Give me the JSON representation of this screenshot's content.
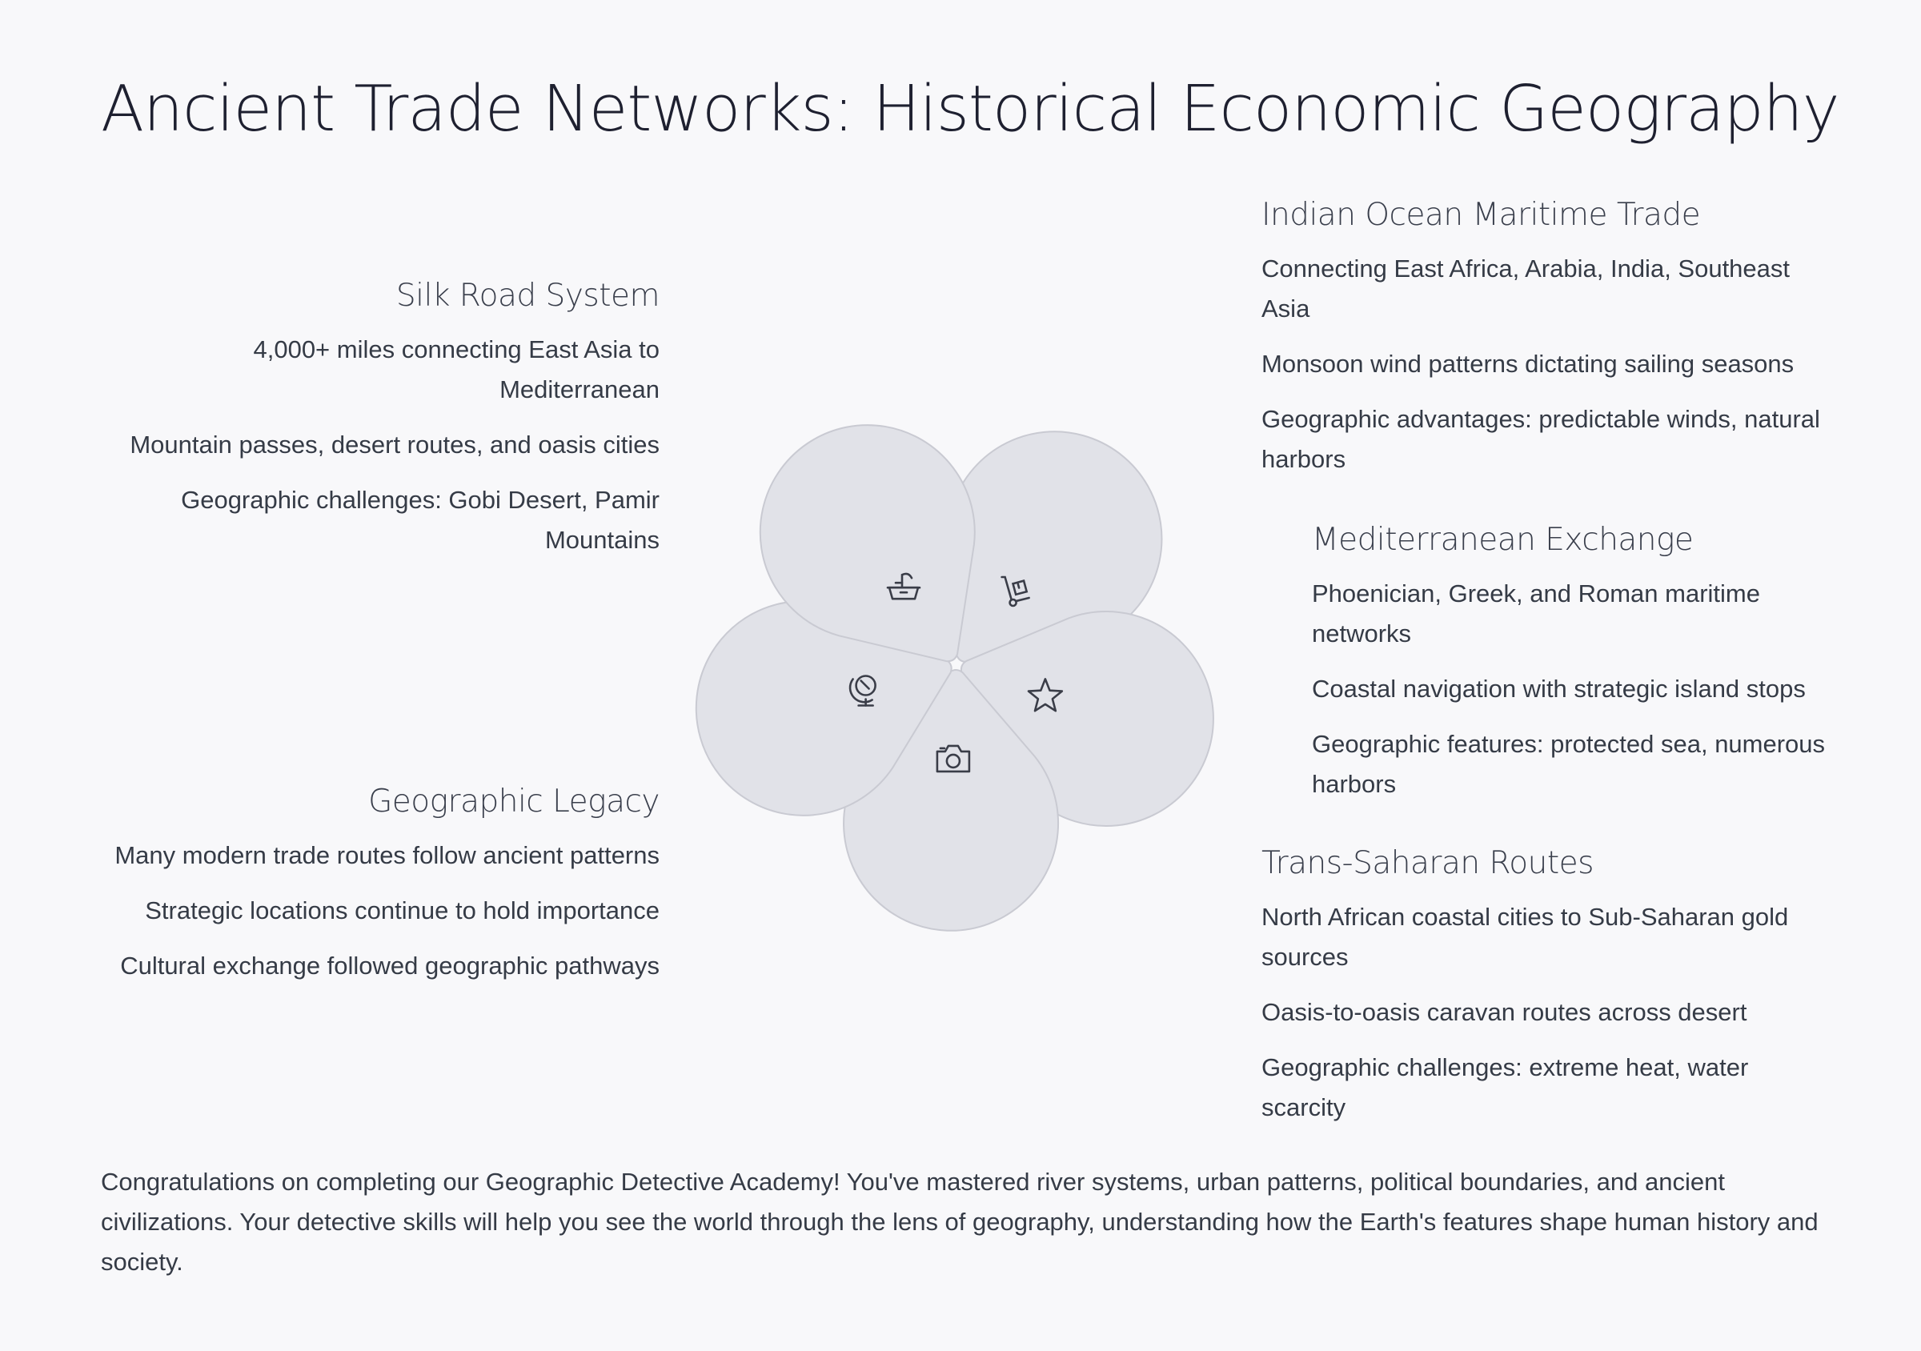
{
  "title": "Ancient Trade Networks: Historical Economic Geography",
  "sections": [
    {
      "id": "silk-road",
      "title": "Silk Road System",
      "items": [
        "4,000+ miles connecting East Asia to Mediterranean",
        "Mountain passes, desert routes, and oasis cities",
        "Geographic challenges: Gobi Desert, Pamir Mountains"
      ]
    },
    {
      "id": "geographic-legacy",
      "title": "Geographic Legacy",
      "items": [
        "Many modern trade routes follow ancient patterns",
        "Strategic locations continue to hold importance",
        "Cultural exchange followed geographic pathways"
      ]
    },
    {
      "id": "indian-ocean",
      "title": "Indian Ocean Maritime Trade",
      "items": [
        "Connecting East Africa, Arabia, India, Southeast Asia",
        "Monsoon wind patterns dictating sailing seasons",
        "Geographic advantages: predictable winds, natural harbors"
      ]
    },
    {
      "id": "mediterranean",
      "title": "Mediterranean Exchange",
      "items": [
        "Phoenician, Greek, and Roman maritime networks",
        "Coastal navigation with strategic island stops",
        "Geographic features: protected sea, numerous harbors"
      ]
    },
    {
      "id": "trans-saharan",
      "title": "Trans-Saharan Routes",
      "items": [
        "North African coastal cities to Sub-Saharan gold sources",
        "Oasis-to-oasis caravan routes across desert",
        "Geographic challenges: extreme heat, water scarcity"
      ]
    }
  ],
  "petals": [
    {
      "icon": "hand-truck-icon"
    },
    {
      "icon": "star-icon"
    },
    {
      "icon": "camera-icon"
    },
    {
      "icon": "globe-icon"
    },
    {
      "icon": "basket-icon"
    }
  ],
  "colors": {
    "petal_fill": "#e1e2e8",
    "petal_stroke": "#c9cad2",
    "icon_stroke": "#3a3d48",
    "background": "#f8f8fa"
  },
  "footer": "Congratulations on completing our Geographic Detective Academy! You've mastered river systems, urban patterns, political boundaries, and ancient civilizations. Your detective skills will help you see the world through the lens of geography, understanding how the Earth's features shape human history and society."
}
